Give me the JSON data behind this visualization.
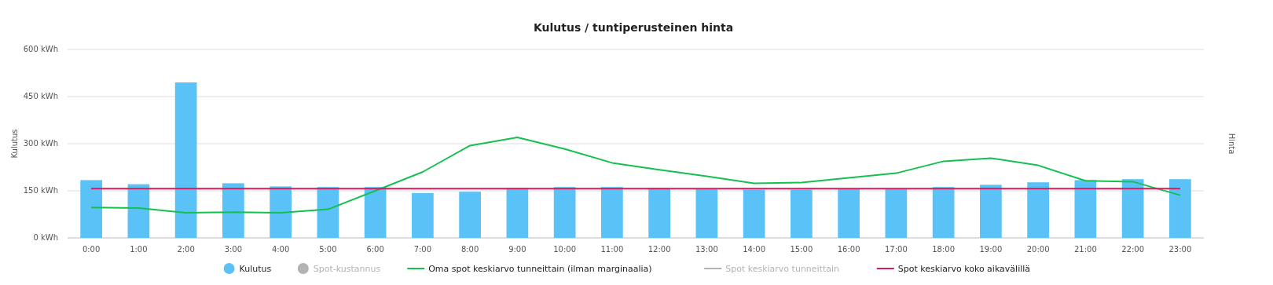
{
  "chart_data": {
    "type": "bar",
    "title": "Kulutus / tuntiperusteinen hinta",
    "ylabel": "Kulutus",
    "y2label": "Hinta",
    "categories": [
      "0:00",
      "1:00",
      "2:00",
      "3:00",
      "4:00",
      "5:00",
      "6:00",
      "7:00",
      "8:00",
      "9:00",
      "10:00",
      "11:00",
      "12:00",
      "13:00",
      "14:00",
      "15:00",
      "16:00",
      "17:00",
      "18:00",
      "19:00",
      "20:00",
      "21:00",
      "22:00",
      "23:00"
    ],
    "ylim": [
      0,
      600
    ],
    "yticks": [
      {
        "value": 0,
        "label": "0 kWh"
      },
      {
        "value": 150,
        "label": "150 kWh"
      },
      {
        "value": 300,
        "label": "300 kWh"
      },
      {
        "value": 450,
        "label": "450 kWh"
      },
      {
        "value": 600,
        "label": "600 kWh"
      }
    ],
    "grid": "y",
    "legend": "bottom",
    "series": [
      {
        "name": "Kulutus",
        "color": "#5bc2f7",
        "values": [
          184,
          171,
          495,
          174,
          164,
          162,
          162,
          143,
          147,
          159,
          162,
          162,
          159,
          155,
          154,
          154,
          157,
          157,
          162,
          169,
          177,
          184,
          187,
          187
        ]
      },
      {
        "name": "Spot-kustannus",
        "color": "#b3b3b3",
        "values": [
          null,
          null,
          null,
          null,
          null,
          null,
          null,
          null,
          null,
          null,
          null,
          null,
          null,
          null,
          null,
          null,
          null,
          null,
          null,
          null,
          null,
          null,
          null,
          null
        ]
      },
      {
        "name": "Oma spot keskiarvo tunneittain (ilman marginaalia)",
        "type": "line",
        "color": "#16c050",
        "values": [
          97,
          95,
          80,
          82,
          80,
          91,
          150,
          210,
          294,
          320,
          283,
          239,
          217,
          196,
          174,
          176,
          191,
          206,
          244,
          254,
          231,
          182,
          179,
          136
        ]
      },
      {
        "name": "Spot keskiarvo tunneittain",
        "type": "line",
        "color": "#b3b3b3",
        "values": [
          null,
          null,
          null,
          null,
          null,
          null,
          null,
          null,
          null,
          null,
          null,
          null,
          null,
          null,
          null,
          null,
          null,
          null,
          null,
          null,
          null,
          null,
          null,
          null
        ]
      },
      {
        "name": "Spot keskiarvo koko aikavälillä",
        "type": "line",
        "color": "#d81b5a",
        "values": [
          157,
          157,
          157,
          157,
          157,
          157,
          157,
          157,
          157,
          157,
          157,
          157,
          157,
          157,
          157,
          157,
          157,
          157,
          157,
          157,
          157,
          157,
          157,
          157
        ]
      }
    ]
  }
}
